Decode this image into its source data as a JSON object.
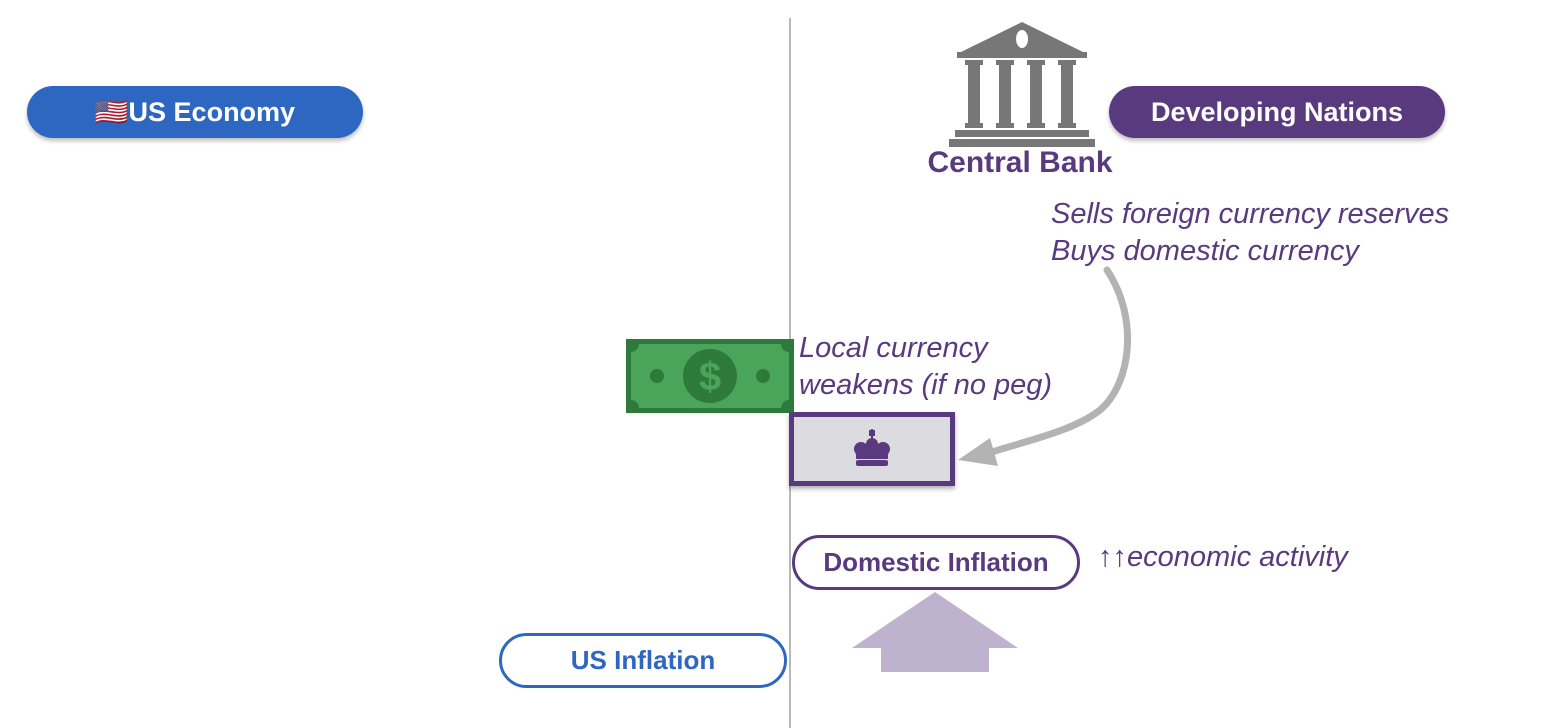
{
  "left_panel": {
    "title": "🇺🇸US Economy",
    "inflation_label": "US Inflation"
  },
  "right_panel": {
    "title": "Developing Nations",
    "bank_label": "Central Bank",
    "bank_action_line1": "Sells foreign currency reserves",
    "bank_action_line2": "Buys domestic currency",
    "currency_note_line1": "Local currency",
    "currency_note_line2": "weakens (if no peg)",
    "inflation_label": "Domestic Inflation",
    "activity_note": "↑↑economic activity"
  },
  "icons": {
    "bank": "bank-building-icon",
    "dollar": "dollar-bill-icon",
    "local_currency": "local-currency-bill-icon",
    "crown": "crown-icon",
    "flow_arrow": "curved-arrow-icon",
    "up_arrow": "up-arrow-icon"
  },
  "colors": {
    "us_blue": "#2e67c1",
    "developing_purple": "#5a3a7e",
    "dollar_green": "#3d9a4d",
    "arrow_gray": "#b3b3b3",
    "up_arrow_lavender": "#bfb2cf",
    "bank_gray": "#777777"
  }
}
